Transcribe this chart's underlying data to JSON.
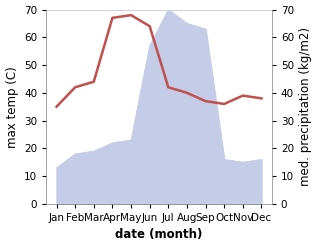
{
  "months": [
    "Jan",
    "Feb",
    "Mar",
    "Apr",
    "May",
    "Jun",
    "Jul",
    "Aug",
    "Sep",
    "Oct",
    "Nov",
    "Dec"
  ],
  "temperature": [
    35,
    42,
    44,
    67,
    68,
    64,
    42,
    40,
    37,
    36,
    39,
    38
  ],
  "precipitation": [
    13,
    18,
    19,
    22,
    23,
    57,
    70,
    65,
    63,
    16,
    15,
    16
  ],
  "temp_color": "#c0504d",
  "precip_fill_color": "#c5cce8",
  "ylim": [
    0,
    70
  ],
  "xlabel": "date (month)",
  "ylabel_left": "max temp (C)",
  "ylabel_right": "med. precipitation (kg/m2)",
  "background_color": "#ffffff",
  "tick_fontsize": 7.5,
  "label_fontsize": 8.5
}
